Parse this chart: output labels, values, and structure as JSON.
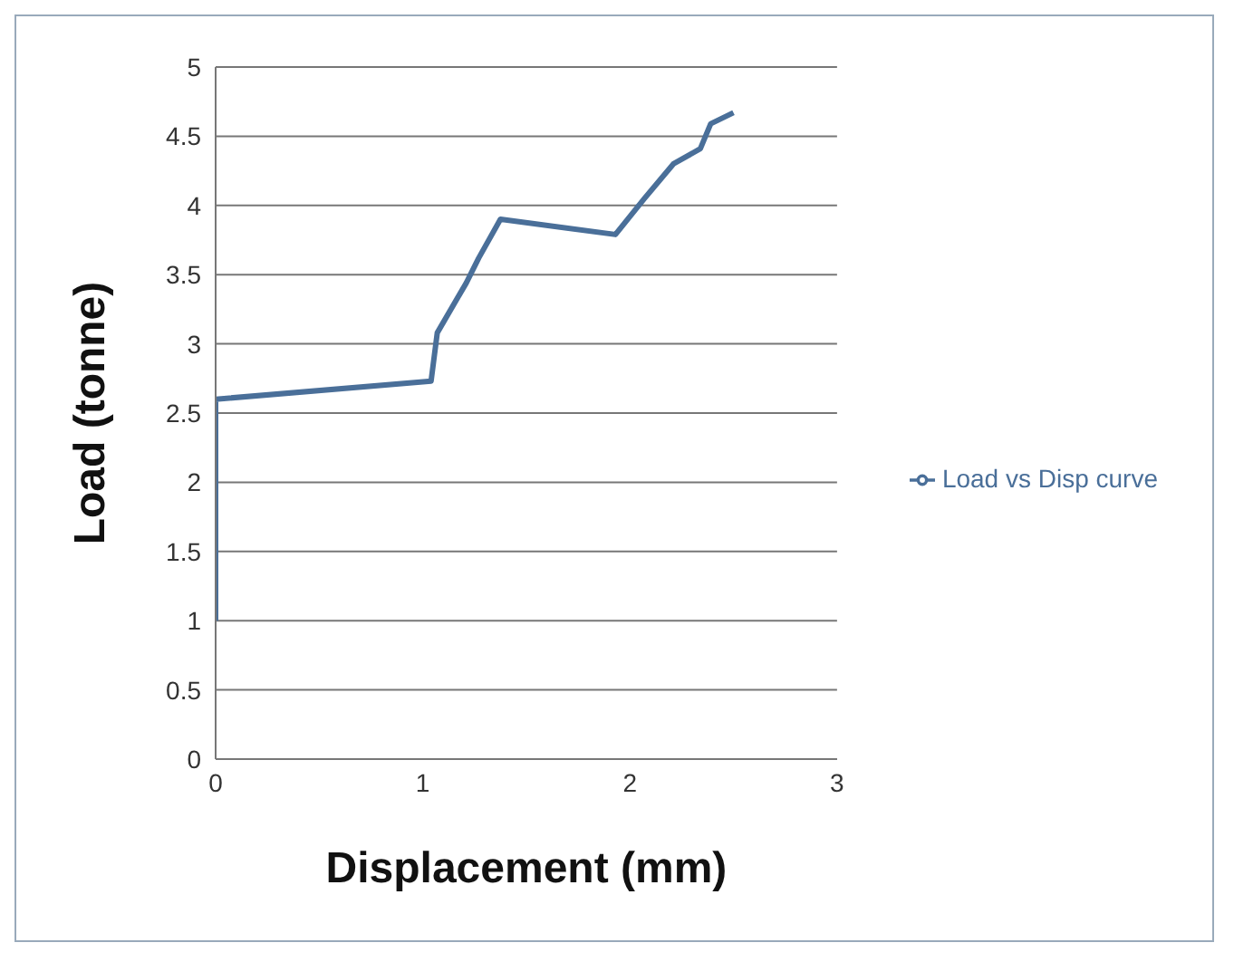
{
  "chart_data": {
    "type": "line",
    "xlabel": "Displacement (mm)",
    "ylabel": "Load (tonne)",
    "x": [
      0,
      0,
      1.04,
      1.07,
      1.21,
      1.27,
      1.375,
      1.93,
      2.07,
      2.21,
      2.34,
      2.39,
      2.5
    ],
    "series": [
      {
        "name": "Load vs Disp curve",
        "color": "#4a6f99",
        "values": [
          1.0,
          2.6,
          2.73,
          3.08,
          3.44,
          3.62,
          3.9,
          3.79,
          4.05,
          4.3,
          4.41,
          4.59,
          4.67
        ]
      }
    ],
    "xlim": [
      0,
      3
    ],
    "xticks": [
      0,
      1,
      2,
      3
    ],
    "ylim": [
      0,
      5
    ],
    "yticks": [
      0,
      0.5,
      1,
      1.5,
      2,
      2.5,
      3,
      3.5,
      4,
      4.5,
      5
    ],
    "grid": "y",
    "legend": "right",
    "marker": "none",
    "line_style": "solid"
  }
}
